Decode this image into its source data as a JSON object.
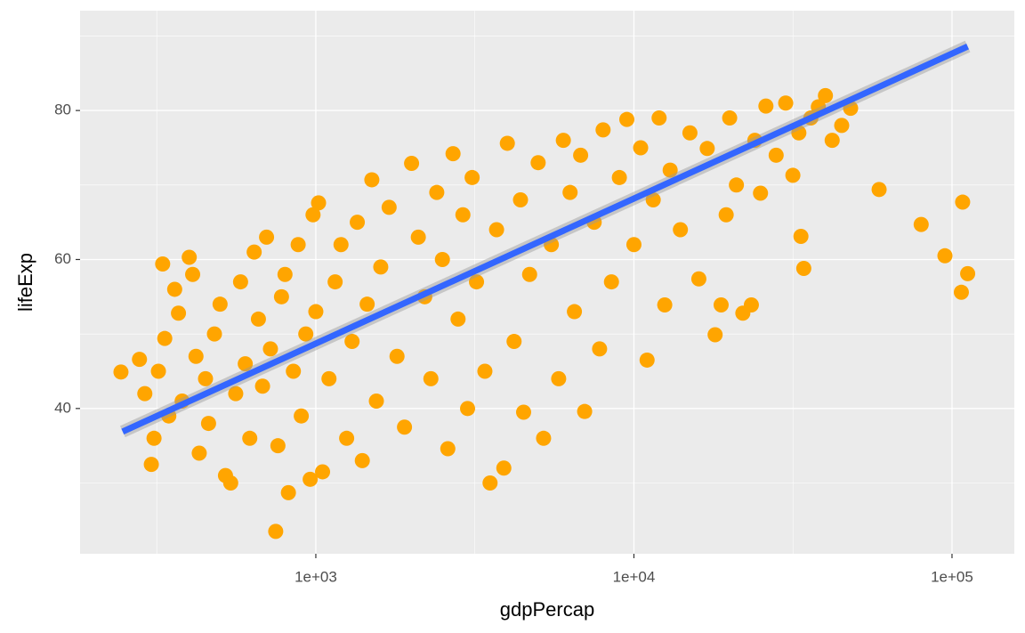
{
  "chart_data": {
    "type": "scatter",
    "x_label": "gdpPercap",
    "y_label": "lifeExp",
    "xlog": true,
    "grid": true,
    "minor_grid": true,
    "xlim": [
      181.5,
      157000
    ],
    "ylim": [
      20.5,
      93.4
    ],
    "xticks": [
      {
        "value": 1000,
        "label": "1e+03"
      },
      {
        "value": 10000,
        "label": "1e+04"
      },
      {
        "value": 100000,
        "label": "1e+05"
      }
    ],
    "yticks": [
      40,
      60,
      80
    ],
    "points": {
      "color": "#FFA500",
      "x": [
        244,
        279,
        304,
        290,
        310,
        320,
        330,
        335,
        345,
        360,
        370,
        380,
        400,
        410,
        420,
        430,
        450,
        460,
        480,
        500,
        520,
        540,
        560,
        580,
        600,
        620,
        640,
        660,
        680,
        700,
        720,
        748,
        760,
        780,
        800,
        820,
        850,
        880,
        900,
        930,
        960,
        980,
        1000,
        1020,
        1050,
        1100,
        1150,
        1200,
        1250,
        1300,
        1350,
        1400,
        1450,
        1500,
        1550,
        1600,
        1700,
        1800,
        1900,
        2000,
        2100,
        2200,
        2300,
        2400,
        2500,
        2600,
        2700,
        2800,
        2900,
        3000,
        3100,
        3200,
        3400,
        3530,
        3700,
        3900,
        4000,
        4200,
        4400,
        4500,
        4700,
        5000,
        5200,
        5500,
        5800,
        6000,
        6300,
        6500,
        6800,
        7000,
        7500,
        7800,
        8000,
        8500,
        9000,
        9500,
        10000,
        10500,
        11000,
        11500,
        12000,
        12500,
        13000,
        14000,
        15000,
        16000,
        17000,
        18000,
        18800,
        19500,
        20000,
        21000,
        22000,
        23400,
        24000,
        25000,
        26000,
        28000,
        30000,
        31600,
        33000,
        33500,
        34200,
        36000,
        38000,
        40000,
        42000,
        45000,
        48000,
        59000,
        80000,
        95000,
        107000,
        108000,
        112000
      ],
      "values": [
        44.9,
        46.6,
        32.5,
        42,
        36,
        45,
        59.4,
        49.4,
        39,
        56,
        52.8,
        41,
        60.3,
        58,
        47,
        34,
        44,
        38,
        50,
        54,
        31,
        30,
        42,
        57,
        46,
        36,
        61,
        52,
        43,
        63,
        48,
        23.5,
        35,
        55,
        58,
        28.7,
        45,
        62,
        39,
        50,
        30.5,
        66,
        53,
        67.6,
        31.5,
        44,
        57,
        62,
        36,
        49,
        65,
        33,
        54,
        70.7,
        41,
        59,
        67,
        47,
        37.5,
        72.9,
        63,
        55,
        44,
        69,
        60,
        34.6,
        74.2,
        52,
        66,
        40,
        71,
        57,
        45,
        30,
        64,
        32,
        75.6,
        49,
        68,
        39.5,
        58,
        73,
        36,
        62,
        44,
        76,
        69,
        53,
        74,
        39.6,
        65,
        48,
        77.4,
        57,
        71,
        78.8,
        62,
        75,
        46.5,
        68,
        79,
        53.9,
        72,
        64,
        77,
        57.4,
        74.9,
        49.9,
        53.9,
        66,
        79,
        70,
        52.8,
        53.9,
        76,
        68.9,
        80.6,
        74,
        81,
        71.3,
        77,
        63.1,
        58.8,
        79,
        80.5,
        82,
        76,
        78,
        80.3,
        69.4,
        64.7,
        60.5,
        55.6,
        67.7,
        58.1
      ]
    },
    "fit": {
      "color": "#3366FF",
      "se": true,
      "x": [
        247,
        112000
      ],
      "values": [
        36.9,
        88.6
      ]
    }
  }
}
